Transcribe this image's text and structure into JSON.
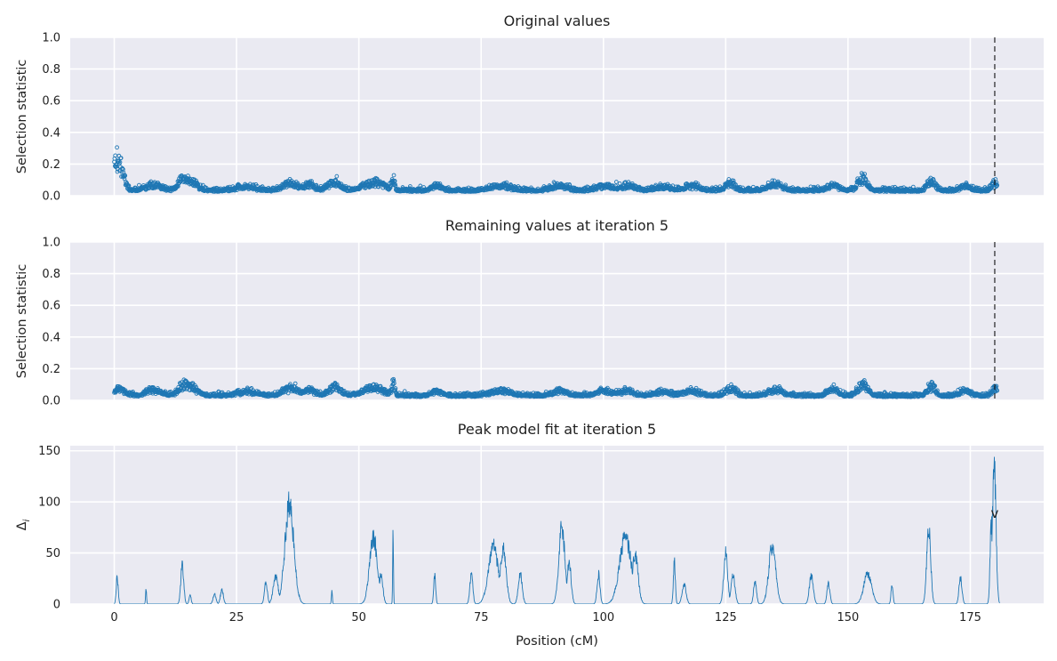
{
  "chart_data": [
    {
      "type": "scatter",
      "title": "Original values",
      "ylabel": "Selection statistic",
      "xlabel": "",
      "xlim": [
        -9,
        190
      ],
      "ylim": [
        0,
        1.0
      ],
      "xticks": [
        0,
        25,
        50,
        75,
        100,
        125,
        150,
        175
      ],
      "yticks": [
        0.0,
        0.2,
        0.4,
        0.6,
        0.8,
        1.0
      ],
      "ytick_labels": [
        "0.0",
        "0.2",
        "0.4",
        "0.6",
        "0.8",
        "1.0"
      ],
      "grid": true,
      "vline_x": 180.0,
      "marker": "open-circle",
      "color": "#1f77b4",
      "baseline": 0.025,
      "bumps": [
        [
          0.3,
          0.17,
          1.0
        ],
        [
          1.2,
          0.12,
          0.8
        ],
        [
          8,
          0.05,
          1.5
        ],
        [
          14,
          0.08,
          1.0
        ],
        [
          16,
          0.06,
          1.2
        ],
        [
          27,
          0.03,
          2.0
        ],
        [
          36,
          0.06,
          1.5
        ],
        [
          40,
          0.05,
          1.0
        ],
        [
          45,
          0.07,
          1.2
        ],
        [
          53,
          0.07,
          2.0
        ],
        [
          57,
          0.1,
          0.3
        ],
        [
          66,
          0.04,
          1.0
        ],
        [
          79,
          0.04,
          2.0
        ],
        [
          91,
          0.04,
          1.5
        ],
        [
          100,
          0.04,
          1.5
        ],
        [
          105,
          0.04,
          1.5
        ],
        [
          112,
          0.03,
          1.5
        ],
        [
          118,
          0.04,
          1.5
        ],
        [
          126,
          0.06,
          1.0
        ],
        [
          135,
          0.05,
          1.5
        ],
        [
          147,
          0.05,
          1.0
        ],
        [
          153,
          0.09,
          1.0
        ],
        [
          167,
          0.08,
          0.8
        ],
        [
          174,
          0.04,
          1.0
        ],
        [
          180,
          0.06,
          0.6
        ]
      ],
      "noise": 0.022,
      "x_range": [
        0,
        180.5
      ],
      "n_points": 2600
    },
    {
      "type": "scatter",
      "title": "Remaining values at iteration 5",
      "ylabel": "Selection statistic",
      "xlabel": "",
      "xlim": [
        -9,
        190
      ],
      "ylim": [
        0,
        1.0
      ],
      "xticks": [
        0,
        25,
        50,
        75,
        100,
        125,
        150,
        175
      ],
      "yticks": [
        0.0,
        0.2,
        0.4,
        0.6,
        0.8,
        1.0
      ],
      "ytick_labels": [
        "0.0",
        "0.2",
        "0.4",
        "0.6",
        "0.8",
        "1.0"
      ],
      "grid": true,
      "vline_x": 180.0,
      "marker": "open-circle",
      "color": "#1f77b4",
      "baseline": 0.022,
      "bumps": [
        [
          1,
          0.06,
          1.0
        ],
        [
          8,
          0.05,
          1.5
        ],
        [
          14,
          0.08,
          1.0
        ],
        [
          16,
          0.06,
          1.2
        ],
        [
          27,
          0.03,
          2.0
        ],
        [
          36,
          0.06,
          1.5
        ],
        [
          40,
          0.05,
          1.0
        ],
        [
          45,
          0.07,
          1.2
        ],
        [
          53,
          0.07,
          2.0
        ],
        [
          57,
          0.11,
          0.3
        ],
        [
          66,
          0.04,
          1.0
        ],
        [
          79,
          0.04,
          2.0
        ],
        [
          91,
          0.04,
          1.5
        ],
        [
          100,
          0.04,
          1.5
        ],
        [
          105,
          0.04,
          1.5
        ],
        [
          112,
          0.03,
          1.5
        ],
        [
          118,
          0.04,
          1.5
        ],
        [
          126,
          0.06,
          1.0
        ],
        [
          135,
          0.05,
          1.5
        ],
        [
          147,
          0.05,
          1.0
        ],
        [
          153,
          0.09,
          1.0
        ],
        [
          167,
          0.08,
          0.8
        ],
        [
          174,
          0.04,
          1.0
        ],
        [
          180,
          0.06,
          0.6
        ]
      ],
      "noise": 0.02,
      "x_range": [
        0,
        180.5
      ],
      "n_points": 2600
    },
    {
      "type": "line",
      "title": "Peak model fit at iteration 5",
      "ylabel": "Δ",
      "ylabel_sub": "i",
      "xlabel": "Position (cM)",
      "xlim": [
        -9,
        190
      ],
      "ylim": [
        0,
        155
      ],
      "xticks": [
        0,
        25,
        50,
        75,
        100,
        125,
        150,
        175
      ],
      "xtick_labels": [
        "0",
        "25",
        "50",
        "75",
        "100",
        "125",
        "150",
        "175"
      ],
      "yticks": [
        0,
        50,
        100,
        150
      ],
      "ytick_labels": [
        "0",
        "50",
        "100",
        "150"
      ],
      "grid": true,
      "color": "#1f77b4",
      "marker_label": "v",
      "marker_at": [
        180.0,
        88
      ],
      "peaks": [
        [
          0.6,
          27,
          0.2
        ],
        [
          6.5,
          15,
          0.1
        ],
        [
          13.9,
          39,
          0.3
        ],
        [
          15.5,
          10,
          0.2
        ],
        [
          20.5,
          10,
          0.3
        ],
        [
          22,
          14,
          0.3
        ],
        [
          31,
          22,
          0.3
        ],
        [
          33,
          28,
          0.5
        ],
        [
          35.8,
          100,
          0.9
        ],
        [
          44.5,
          14,
          0.1
        ],
        [
          53,
          66,
          0.8
        ],
        [
          54.5,
          30,
          0.4
        ],
        [
          57,
          78,
          0.08
        ],
        [
          65.5,
          29,
          0.2
        ],
        [
          73,
          30,
          0.3
        ],
        [
          77.5,
          58,
          1.0
        ],
        [
          79.5,
          55,
          0.6
        ],
        [
          83,
          30,
          0.4
        ],
        [
          91.5,
          78,
          0.6
        ],
        [
          93,
          42,
          0.4
        ],
        [
          99,
          30,
          0.3
        ],
        [
          104.5,
          67,
          1.2
        ],
        [
          106.5,
          50,
          0.6
        ],
        [
          114.5,
          43,
          0.2
        ],
        [
          116.5,
          20,
          0.4
        ],
        [
          125,
          51,
          0.4
        ],
        [
          126.5,
          28,
          0.4
        ],
        [
          131,
          22,
          0.3
        ],
        [
          134.5,
          58,
          0.7
        ],
        [
          142.5,
          28,
          0.4
        ],
        [
          146,
          20,
          0.3
        ],
        [
          154,
          30,
          0.8
        ],
        [
          159,
          20,
          0.2
        ],
        [
          166.5,
          78,
          0.4
        ],
        [
          173,
          27,
          0.3
        ],
        [
          179.9,
          143,
          0.35
        ],
        [
          179.3,
          80,
          0.25
        ]
      ]
    }
  ]
}
